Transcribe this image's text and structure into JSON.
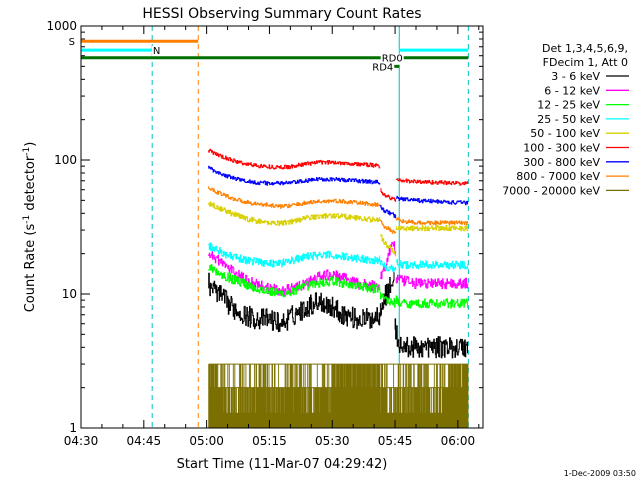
{
  "chart_data": {
    "type": "line",
    "title": "HESSI Observing Summary Count Rates",
    "xlabel": "Start Time (11-Mar-07 04:29:42)",
    "ylabel_main": "Count Rate (s",
    "ylabel_sup1": "-1",
    "ylabel_mid": " detector",
    "ylabel_sup2": "-1",
    "ylabel_end": ")",
    "footer": "1-Dec-2009 03:50",
    "y_scale": "log",
    "ylim": [
      1,
      1000
    ],
    "xlim_minutes": [
      0,
      96
    ],
    "x_ticks": [
      {
        "m": 0,
        "label": "04:30"
      },
      {
        "m": 15,
        "label": "04:45"
      },
      {
        "m": 30,
        "label": "05:00"
      },
      {
        "m": 45,
        "label": "05:15"
      },
      {
        "m": 60,
        "label": "05:30"
      },
      {
        "m": 75,
        "label": "05:45"
      },
      {
        "m": 90,
        "label": "06:00"
      }
    ],
    "y_ticks": [
      {
        "v": 1,
        "label": "1"
      },
      {
        "v": 10,
        "label": "10"
      },
      {
        "v": 100,
        "label": "100"
      },
      {
        "v": 1000,
        "label": "1000"
      }
    ],
    "legend": {
      "header1": "Det 1,3,4,5,6,9,",
      "header2": "FDecim 1, Att 0",
      "entries": [
        {
          "label": "3 - 6 keV",
          "color": "#000000"
        },
        {
          "label": "6 - 12 keV",
          "color": "#ff00ff"
        },
        {
          "label": "12 - 25 keV",
          "color": "#00ff00"
        },
        {
          "label": "25 - 50 keV",
          "color": "#00ffff"
        },
        {
          "label": "50 - 100 keV",
          "color": "#d8d000"
        },
        {
          "label": "100 - 300 keV",
          "color": "#ff0000"
        },
        {
          "label": "300 - 800 keV",
          "color": "#0000ff"
        },
        {
          "label": "800 - 7000 keV",
          "color": "#ff8000"
        },
        {
          "label": "7000 - 20000 keV",
          "color": "#7a6f00"
        }
      ]
    },
    "series": [
      {
        "name": "3 - 6 keV",
        "color": "#000000",
        "noise": 0.16,
        "segments": [
          {
            "x": [
              30.5,
              33,
              36,
              39,
              42,
              45,
              48,
              51,
              54,
              57,
              60,
              63,
              66,
              69,
              71.5
            ],
            "y": [
              12,
              10,
              8,
              7,
              6.5,
              6.5,
              6,
              7,
              8,
              9,
              8,
              7,
              6.5,
              6.5,
              7
            ]
          },
          {
            "x": [
              71.5,
              73,
              75
            ],
            "y": [
              8,
              10,
              13
            ]
          },
          {
            "x": [
              75,
              75.8,
              76.5,
              80,
              85,
              90,
              92.5
            ],
            "y": [
              6,
              4.5,
              4,
              4,
              4,
              4,
              4
            ]
          }
        ]
      },
      {
        "name": "6 - 12 keV",
        "color": "#ff00ff",
        "noise": 0.08,
        "segments": [
          {
            "x": [
              30.5,
              33,
              36,
              39,
              42,
              45,
              48,
              51,
              54,
              57,
              60,
              63,
              66,
              69,
              71.5
            ],
            "y": [
              20,
              18,
              15,
              13,
              12,
              11,
              10.5,
              11,
              12,
              13.5,
              14,
              13,
              12,
              11.5,
              11.5
            ]
          },
          {
            "x": [
              71.5,
              73,
              74.5,
              75.3
            ],
            "y": [
              13,
              17,
              25,
              20
            ]
          },
          {
            "x": [
              75.3,
              77,
              80,
              85,
              90,
              92.5
            ],
            "y": [
              13,
              12.5,
              12,
              12,
              12,
              12
            ]
          }
        ]
      },
      {
        "name": "12 - 25 keV",
        "color": "#00ff00",
        "noise": 0.07,
        "segments": [
          {
            "x": [
              30.5,
              33,
              36,
              39,
              42,
              45,
              48,
              51,
              54,
              57,
              60,
              63,
              66,
              69,
              71.5
            ],
            "y": [
              16,
              14.5,
              13,
              12,
              11,
              10.5,
              10,
              10.5,
              11.5,
              12,
              12.5,
              12,
              11.5,
              11,
              11
            ]
          },
          {
            "x": [
              71.5,
              73,
              75.3
            ],
            "y": [
              10,
              9,
              8.5
            ]
          },
          {
            "x": [
              75.3,
              77,
              80,
              85,
              90,
              92.5
            ],
            "y": [
              9,
              8.5,
              8.5,
              8.5,
              8.5,
              8.5
            ]
          }
        ]
      },
      {
        "name": "25 - 50 keV",
        "color": "#00ffff",
        "noise": 0.06,
        "segments": [
          {
            "x": [
              30.5,
              33,
              36,
              39,
              42,
              45,
              48,
              51,
              54,
              57,
              60,
              63,
              66,
              69,
              71.5
            ],
            "y": [
              23,
              21,
              19,
              18,
              17.5,
              17,
              17,
              18,
              19,
              19.5,
              19.5,
              19,
              18.5,
              18,
              18
            ]
          },
          {
            "x": [
              71.5,
              73,
              75.3
            ],
            "y": [
              17,
              16,
              15.5
            ]
          },
          {
            "x": [
              75.3,
              77,
              80,
              85,
              90,
              92.5
            ],
            "y": [
              17,
              16.5,
              16.5,
              16.5,
              16.5,
              16.5
            ]
          }
        ]
      },
      {
        "name": "50 - 100 keV",
        "color": "#d8d000",
        "noise": 0.04,
        "segments": [
          {
            "x": [
              30.5,
              33,
              36,
              39,
              42,
              45,
              48,
              51,
              54,
              57,
              60,
              63,
              66,
              69,
              71.5
            ],
            "y": [
              48,
              44,
              40,
              37,
              35,
              34,
              34,
              35,
              37,
              38,
              38.5,
              38,
              37,
              36,
              36
            ]
          },
          {
            "x": [
              71.5,
              72.5,
              74,
              75.3
            ],
            "y": [
              28,
              24,
              22,
              20
            ]
          },
          {
            "x": [
              75.3,
              78,
              82,
              86,
              90,
              92.5
            ],
            "y": [
              31,
              31,
              31,
              31,
              31,
              31
            ]
          }
        ]
      },
      {
        "name": "100 - 300 keV",
        "color": "#ff0000",
        "noise": 0.03,
        "segments": [
          {
            "x": [
              30.5,
              33,
              36,
              39,
              42,
              45,
              48,
              51,
              54,
              57,
              60,
              63,
              66,
              69,
              71.5
            ],
            "y": [
              118,
              108,
              100,
              94,
              91,
              89,
              88,
              90,
              94,
              96,
              96,
              95,
              93,
              92,
              90
            ]
          },
          {
            "x": [
              71.5,
              72.5,
              74,
              75.3
            ],
            "y": [
              60,
              55,
              52,
              50
            ]
          },
          {
            "x": [
              75.3,
              77,
              80,
              85,
              90,
              92.5
            ],
            "y": [
              72,
              70,
              69,
              68,
              67,
              67
            ]
          }
        ]
      },
      {
        "name": "300 - 800 keV",
        "color": "#0000ff",
        "noise": 0.03,
        "segments": [
          {
            "x": [
              30.5,
              33,
              36,
              39,
              42,
              45,
              48,
              51,
              54,
              57,
              60,
              63,
              66,
              69,
              71.5
            ],
            "y": [
              88,
              80,
              74,
              70,
              68,
              67,
              67,
              68,
              70,
              72,
              72,
              71,
              70,
              69,
              68
            ]
          },
          {
            "x": [
              71.5,
              72.5,
              74,
              75.3
            ],
            "y": [
              45,
              42,
              40,
              38
            ]
          },
          {
            "x": [
              75.3,
              77,
              80,
              85,
              90,
              92.5
            ],
            "y": [
              52,
              51,
              50,
              49,
              48,
              48
            ]
          }
        ]
      },
      {
        "name": "800 - 7000 keV",
        "color": "#ff8000",
        "noise": 0.03,
        "segments": [
          {
            "x": [
              30.5,
              33,
              36,
              39,
              42,
              45,
              48,
              51,
              54,
              57,
              60,
              63,
              66,
              69,
              71.5
            ],
            "y": [
              62,
              57,
              52,
              49,
              47,
              46,
              45,
              46,
              48,
              49,
              49.5,
              49,
              48,
              47,
              46
            ]
          },
          {
            "x": [
              71.5,
              72.5,
              74,
              75.3
            ],
            "y": [
              35,
              32,
              30,
              28
            ]
          },
          {
            "x": [
              75.3,
              77,
              80,
              85,
              90,
              92.5
            ],
            "y": [
              36,
              35,
              34,
              34,
              34,
              34
            ]
          }
        ]
      }
    ],
    "high_energy_band": {
      "name": "7000 - 20000 keV",
      "color": "#7a6f00",
      "x_range": [
        30.5,
        92.5
      ],
      "levels": [
        1,
        2,
        3
      ],
      "dense3_ranges": [
        [
          30.5,
          33
        ],
        [
          60,
          71
        ],
        [
          88,
          92.5
        ]
      ]
    },
    "vertical_lines": [
      {
        "m": 0,
        "color": "#00c000",
        "dash": false
      },
      {
        "m": 17,
        "color": "#00c0c0",
        "dash": true
      },
      {
        "m": 28,
        "color": "#ff8000",
        "dash": true
      },
      {
        "m": 76,
        "color": "#00c0c0",
        "dash": false
      },
      {
        "m": 92.5,
        "color": "#00c0c0",
        "dash": true
      }
    ],
    "flag_bars": [
      {
        "label": "S",
        "color": "#ff8000",
        "x": [
          0,
          28
        ],
        "y": 770,
        "width": 3
      },
      {
        "label": "N",
        "color": "#00ffff",
        "x": [
          0,
          17
        ],
        "y": 660,
        "width": 3
      },
      {
        "label": "",
        "color": "#00ffff",
        "x": [
          76,
          92.5
        ],
        "y": 660,
        "width": 3
      },
      {
        "label": "",
        "color": "#007000",
        "x": [
          0,
          92.5
        ],
        "y": 580,
        "width": 3
      },
      {
        "label": "RD0",
        "color": "#007000",
        "x": [
          74.5,
          77
        ],
        "y": 580,
        "width": 3
      },
      {
        "label": "RD4",
        "color": "#007000",
        "x": [
          71,
          76
        ],
        "y": 500,
        "width": 3
      }
    ]
  }
}
